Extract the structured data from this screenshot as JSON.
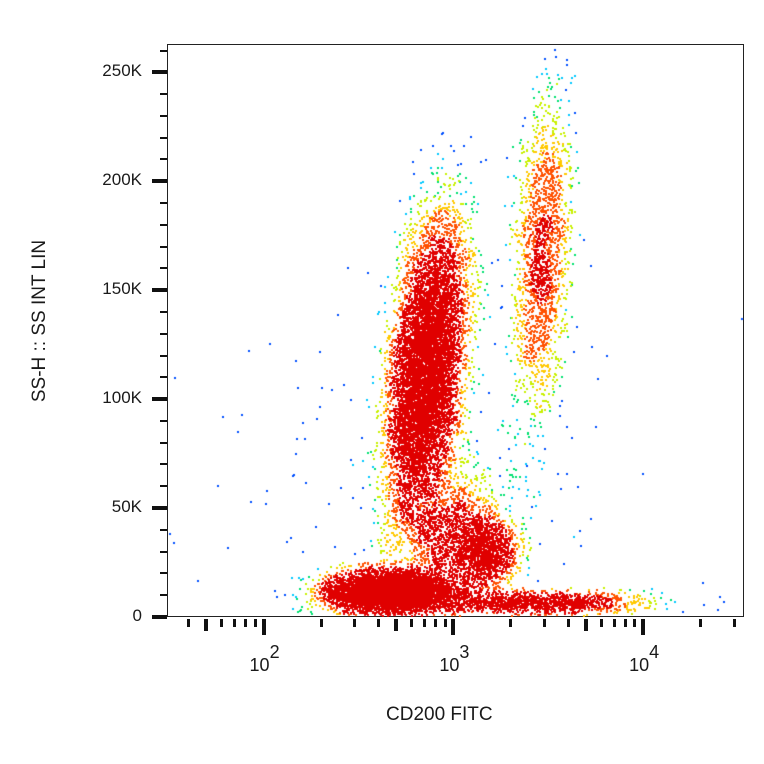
{
  "chart_data": {
    "type": "scatter",
    "subtype": "flow-cytometry density dot plot (pseudocolor)",
    "title": "",
    "xlabel": "CD200 FITC",
    "ylabel": "SS-H :: SS INT LIN",
    "x_scale": "log",
    "y_scale": "linear",
    "xlim": [
      31,
      34000
    ],
    "ylim": [
      0,
      263000
    ],
    "x_ticks": [
      {
        "value": 100,
        "base": "10",
        "exp": "2"
      },
      {
        "value": 1000,
        "base": "10",
        "exp": "3"
      },
      {
        "value": 10000,
        "base": "10",
        "exp": "4"
      }
    ],
    "y_ticks": [
      {
        "value": 0,
        "label": "0"
      },
      {
        "value": 50000,
        "label": "50K"
      },
      {
        "value": 100000,
        "label": "100K"
      },
      {
        "value": 150000,
        "label": "150K"
      },
      {
        "value": 200000,
        "label": "200K"
      },
      {
        "value": 250000,
        "label": "250K"
      }
    ],
    "grid": false,
    "legend": "none",
    "color_scale": [
      "#0000c8",
      "#0050ff",
      "#00c8ff",
      "#00e070",
      "#c8f000",
      "#ffc800",
      "#ff5000",
      "#e00000"
    ],
    "data_provenance": "estimated by eye from figure; not per-event data",
    "populations": [
      {
        "name": "large-ellipse",
        "x_center": 710,
        "y_center": 113000,
        "x_range": [
          520,
          1100
        ],
        "y_range": [
          63000,
          200000
        ],
        "relative_density": "high",
        "peak_color": "red"
      },
      {
        "name": "low-left-cluster",
        "x_center": 470,
        "y_center": 12000,
        "x_range": [
          230,
          950
        ],
        "y_range": [
          3000,
          21000
        ],
        "relative_density": "high",
        "peak_color": "red"
      },
      {
        "name": "small-mid-cluster",
        "x_center": 1470,
        "y_center": 30000,
        "x_range": [
          1100,
          1900
        ],
        "y_range": [
          18000,
          42000
        ],
        "relative_density": "medium",
        "peak_color": "cyan-green"
      },
      {
        "name": "tall-sparse-column",
        "x_center": 2900,
        "y_center": 165000,
        "x_range": [
          2000,
          4700
        ],
        "y_range": [
          90000,
          242000
        ],
        "relative_density": "low",
        "peak_color": "blue"
      },
      {
        "name": "low-right-tail",
        "x_center": 2500,
        "y_center": 7000,
        "x_range": [
          900,
          6500
        ],
        "y_range": [
          3000,
          11000
        ],
        "relative_density": "low",
        "peak_color": "blue-cyan"
      }
    ]
  }
}
